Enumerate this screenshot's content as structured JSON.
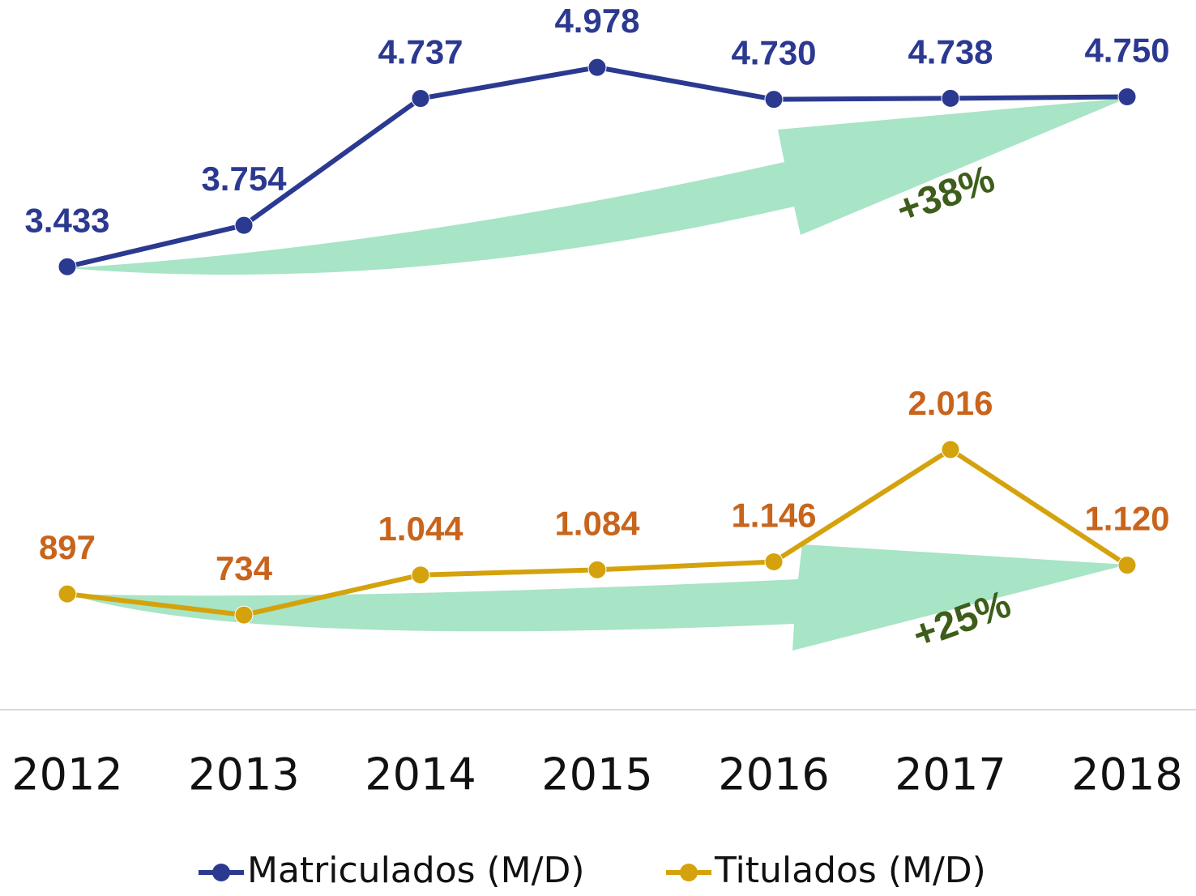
{
  "chart_data": {
    "type": "line",
    "categories": [
      "2012",
      "2013",
      "2014",
      "2015",
      "2016",
      "2017",
      "2018"
    ],
    "series": [
      {
        "name": "Matriculados (M/D)",
        "color": "#2b3990",
        "label_color": "#2b3990",
        "values": [
          3433,
          3754,
          4737,
          4978,
          4730,
          4738,
          4750
        ],
        "value_labels": [
          "3.433",
          "3.754",
          "4.737",
          "4.978",
          "4.730",
          "4.738",
          "4.750"
        ]
      },
      {
        "name": "Titulados  (M/D)",
        "color": "#d4a20c",
        "label_color": "#c8641c",
        "values": [
          897,
          734,
          1044,
          1084,
          1146,
          2016,
          1120
        ],
        "value_labels": [
          "897",
          "734",
          "1.044",
          "1.084",
          "1.146",
          "2.016",
          "1.120"
        ]
      }
    ],
    "annotations": [
      "+38%",
      "+25%"
    ],
    "ylim": [
      0,
      5500
    ]
  }
}
